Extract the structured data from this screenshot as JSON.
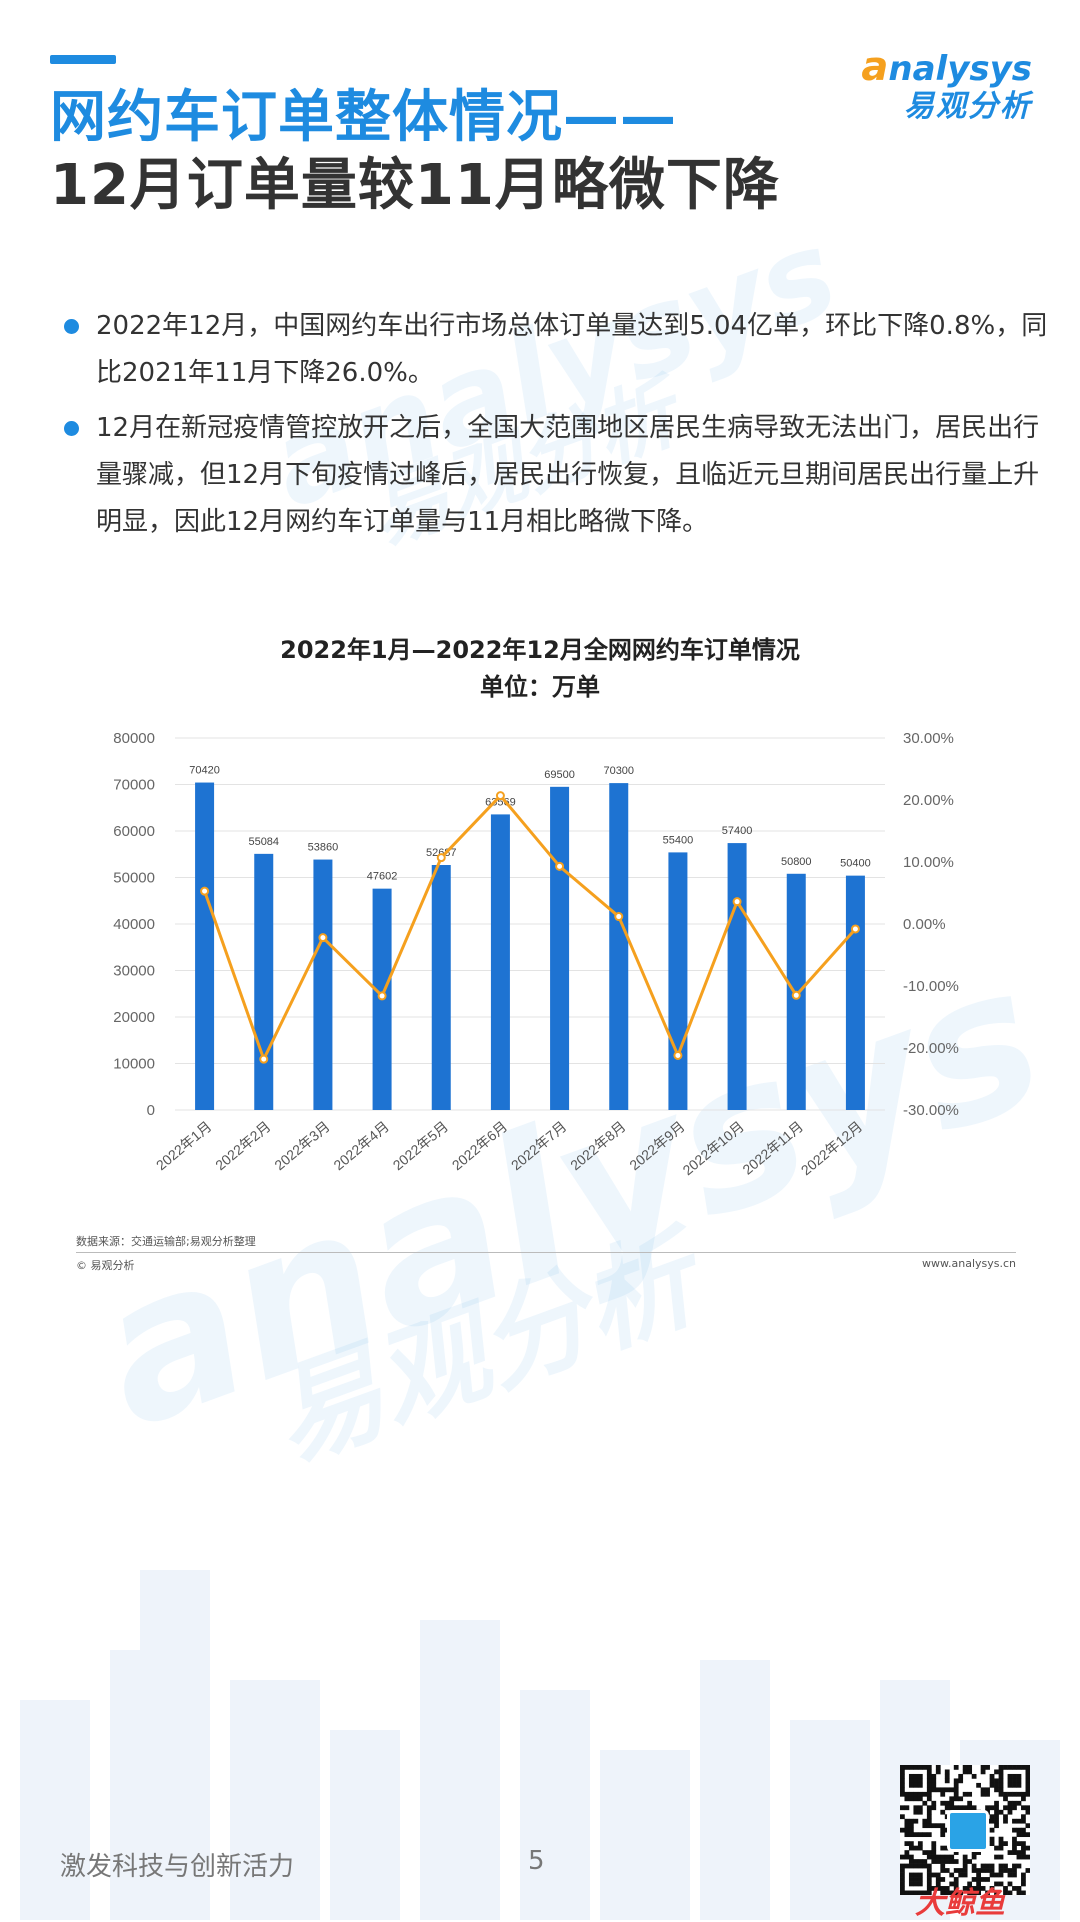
{
  "header": {
    "title_line1": "网约车订单整体情况——",
    "title_line2": "12月订单量较11月略微下降"
  },
  "logo": {
    "en_initial": "a",
    "en_rest": "nalysys",
    "cn": "易观分析"
  },
  "watermark": {
    "en": "analysys",
    "cn": "易观分析"
  },
  "bullets": [
    "2022年12月，中国网约车出行市场总体订单量达到5.04亿单，环比下降0.8%，同比2021年11月下降26.0%。",
    "12月在新冠疫情管控放开之后，全国大范围地区居民生病导致无法出门，居民出行量骤减，但12月下旬疫情过峰后，居民出行恢复，且临近元旦期间居民出行量上升明显，因此12月网约车订单量与11月相比略微下降。"
  ],
  "chart_data": {
    "type": "bar",
    "title": "2022年1月—2022年12月全网网约车订单情况",
    "subtitle": "单位：万单",
    "categories": [
      "2022年1月",
      "2022年2月",
      "2022年3月",
      "2022年4月",
      "2022年5月",
      "2022年6月",
      "2022年7月",
      "2022年8月",
      "2022年9月",
      "2022年10月",
      "2022年11月",
      "2022年12月"
    ],
    "series": [
      {
        "type": "bar",
        "axis": "left",
        "color": "#1e73d2",
        "values": [
          70420,
          55084,
          53860,
          47602,
          52687,
          63569,
          69500,
          70300,
          55400,
          57400,
          50800,
          50400
        ]
      },
      {
        "type": "line",
        "axis": "right",
        "color": "#f5a01e",
        "values": [
          5.3,
          -21.8,
          -2.2,
          -11.6,
          10.7,
          20.7,
          9.3,
          1.2,
          -21.2,
          3.6,
          -11.5,
          -0.8
        ]
      }
    ],
    "y_left": {
      "min": 0,
      "max": 80000,
      "ticks": [
        0,
        10000,
        20000,
        30000,
        40000,
        50000,
        60000,
        70000,
        80000
      ]
    },
    "y_right": {
      "min": -30,
      "max": 30,
      "ticks": [
        "-30.00%",
        "-20.00%",
        "-10.00%",
        "0.00%",
        "10.00%",
        "20.00%",
        "30.00%"
      ]
    },
    "grid": true
  },
  "footer": {
    "source": "数据来源：交通运输部;易观分析整理",
    "copyright": "© 易观分析",
    "website": "www.analysys.cn",
    "slogan": "激发科技与创新活力",
    "page": "5",
    "corner_logo": "大鲸鱼"
  }
}
